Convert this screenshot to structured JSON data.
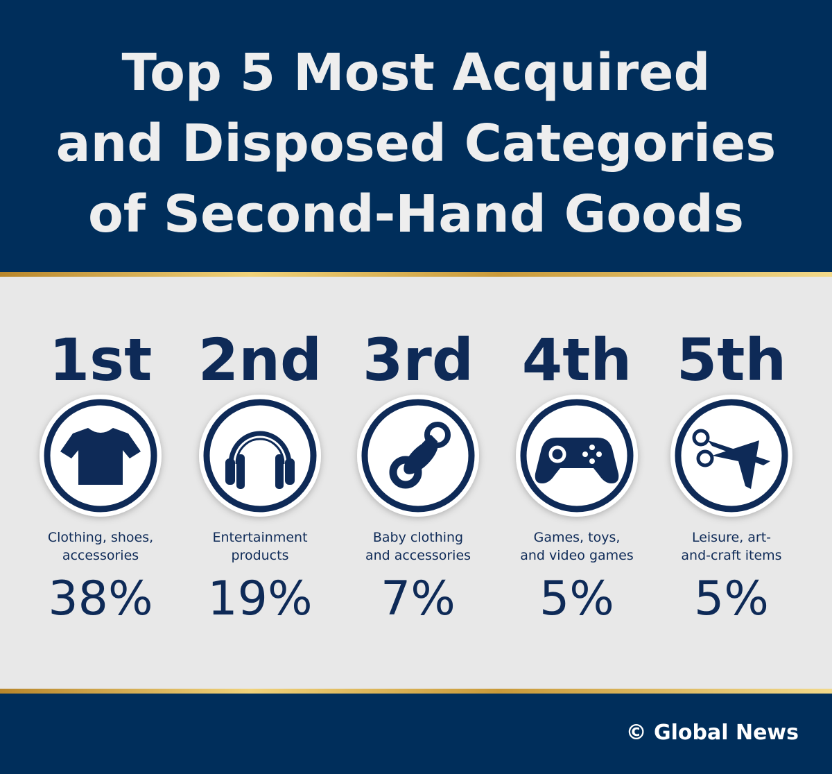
{
  "header": {
    "title_lines": [
      "Top 5 Most Acquired",
      "and Disposed Categories",
      "of Second-Hand Goods"
    ]
  },
  "items": [
    {
      "rank": "1st",
      "label_lines": [
        "Clothing, shoes,",
        "accessories"
      ],
      "percent": "38%"
    },
    {
      "rank": "2nd",
      "label_lines": [
        "Entertainment",
        "products"
      ],
      "percent": "19%"
    },
    {
      "rank": "3rd",
      "label_lines": [
        "Baby clothing",
        "and accessories"
      ],
      "percent": "7%"
    },
    {
      "rank": "4th",
      "label_lines": [
        "Games, toys,",
        "and video games"
      ],
      "percent": "5%"
    },
    {
      "rank": "5th",
      "label_lines": [
        "Leisure, art-",
        "and-craft items"
      ],
      "percent": "5%"
    }
  ],
  "footer": {
    "credit": "© Global News"
  }
}
